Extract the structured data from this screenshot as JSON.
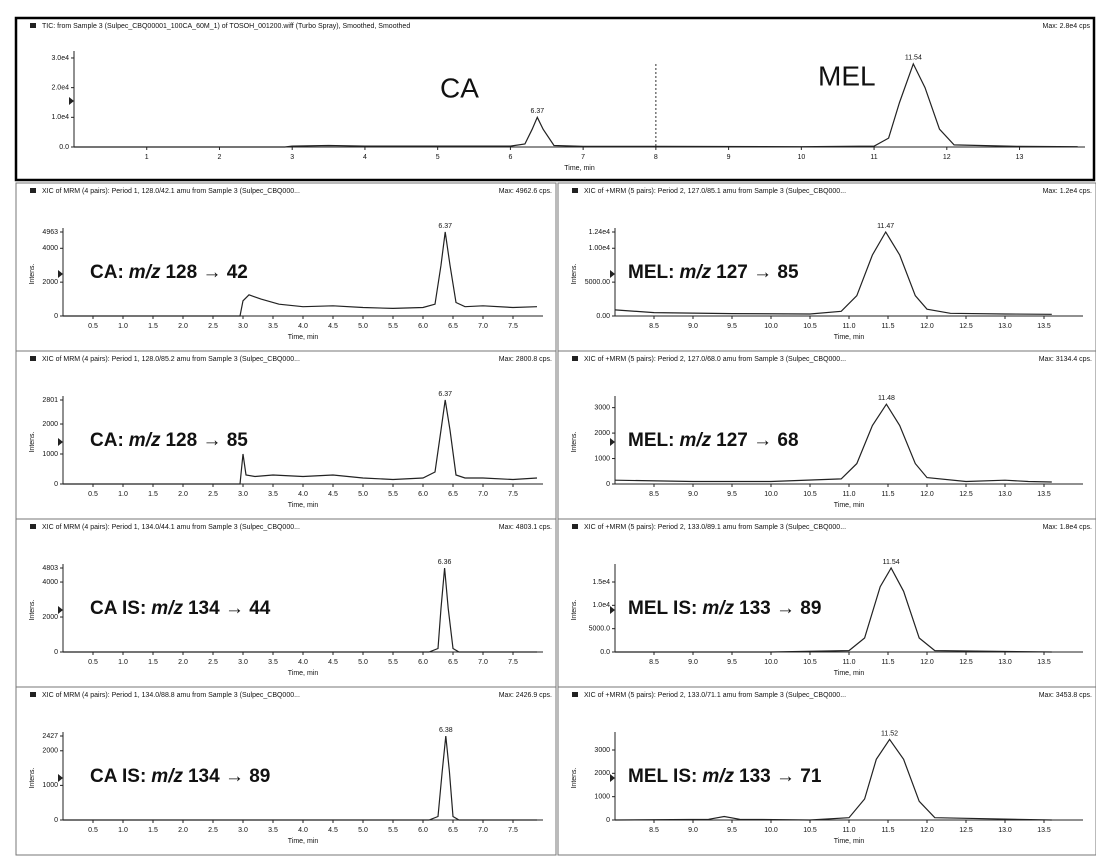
{
  "chart_data": [
    {
      "type": "line",
      "title": "TIC: from Sample 3 (Sulpec_CBQ00001_100CA_60M_1) of TOSOH_001200.wiff (Turbo Spray), Smoothed, Smoothed",
      "max_label": "Max: 2.8e4 cps",
      "xlabel": "Time, min",
      "annotations": [
        "CA",
        "MEL"
      ],
      "peaks": [
        6.37,
        11.54
      ],
      "period_boundary": 8,
      "color": "#222222",
      "x": [
        0,
        2.9,
        3.0,
        3.5,
        4.0,
        5.0,
        6.0,
        6.2,
        6.3,
        6.37,
        6.45,
        6.6,
        7.0,
        8.0,
        10.0,
        11.0,
        11.2,
        11.35,
        11.54,
        11.7,
        11.9,
        12.1,
        13.0,
        13.8
      ],
      "values": [
        0,
        0,
        300,
        500,
        300,
        300,
        300,
        1000,
        6000,
        10000,
        6000,
        500,
        200,
        200,
        100,
        300,
        3000,
        15000,
        28000,
        20000,
        6000,
        700,
        200,
        100
      ],
      "xlim": [
        0,
        13.9
      ],
      "xticks": [
        1,
        2,
        3,
        4,
        5,
        6,
        7,
        8,
        9,
        10,
        11,
        12,
        13
      ],
      "ylim": [
        0,
        31000
      ],
      "yticks": [
        {
          "value": 0,
          "label": "0.0"
        },
        {
          "value": 10000,
          "label": "1.0e4"
        },
        {
          "value": 20000,
          "label": "2.0e4"
        },
        {
          "value": 30000,
          "label": "3.0e4"
        }
      ]
    },
    {
      "type": "line",
      "title": "XIC of MRM (4 pairs): Period 1, 128.0/42.1 amu from Sample 3 (Sulpec_CBQ000...",
      "max_label": "Max: 4962.6 cps.",
      "xlabel": "Time, min",
      "ylabel": "Intens.",
      "annotation": [
        "CA:",
        "m/z",
        "128 → 42"
      ],
      "peaks": [
        6.37
      ],
      "color": "#222222",
      "x": [
        0,
        2.95,
        3.0,
        3.1,
        3.3,
        3.6,
        4.0,
        4.5,
        5.0,
        5.5,
        6.0,
        6.2,
        6.3,
        6.37,
        6.45,
        6.55,
        6.7,
        7.0,
        7.5,
        7.9
      ],
      "values": [
        0,
        0,
        900,
        1250,
        1000,
        700,
        550,
        600,
        500,
        450,
        500,
        700,
        3000,
        4963,
        3000,
        800,
        550,
        600,
        500,
        550
      ],
      "xlim": [
        0,
        8.0
      ],
      "xticks": [
        0.5,
        {
          "value": 1,
          "label": "1.0"
        },
        1.5,
        {
          "value": 2,
          "label": "2.0"
        },
        2.5,
        {
          "value": 3,
          "label": "3.0"
        },
        3.5,
        {
          "value": 4,
          "label": "4.0"
        },
        4.5,
        {
          "value": 5,
          "label": "5.0"
        },
        5.5,
        {
          "value": 6,
          "label": "6.0"
        },
        6.5,
        {
          "value": 7,
          "label": "7.0"
        },
        7.5
      ],
      "ylim": [
        0,
        4963
      ],
      "yticks": [
        0,
        2000,
        4000,
        4963
      ]
    },
    {
      "type": "line",
      "title": "XIC of MRM (4 pairs): Period 1, 128.0/85.2 amu from Sample 3 (Sulpec_CBQ000...",
      "max_label": "Max: 2800.8 cps.",
      "xlabel": "Time, min",
      "ylabel": "Intens.",
      "annotation": [
        "CA:",
        "m/z",
        "128 → 85"
      ],
      "peaks": [
        6.37
      ],
      "color": "#222222",
      "x": [
        0,
        2.95,
        3.0,
        3.05,
        3.2,
        3.5,
        4.0,
        4.5,
        5.0,
        5.5,
        6.0,
        6.2,
        6.3,
        6.37,
        6.45,
        6.55,
        6.7,
        7.0,
        7.5,
        7.9
      ],
      "values": [
        0,
        0,
        1000,
        300,
        250,
        300,
        250,
        300,
        200,
        150,
        200,
        400,
        1800,
        2801,
        1800,
        300,
        200,
        200,
        150,
        200
      ],
      "xlim": [
        0,
        8.0
      ],
      "xticks": [
        0.5,
        {
          "value": 1,
          "label": "1.0"
        },
        1.5,
        {
          "value": 2,
          "label": "2.0"
        },
        2.5,
        {
          "value": 3,
          "label": "3.0"
        },
        3.5,
        {
          "value": 4,
          "label": "4.0"
        },
        4.5,
        {
          "value": 5,
          "label": "5.0"
        },
        5.5,
        {
          "value": 6,
          "label": "6.0"
        },
        6.5,
        {
          "value": 7,
          "label": "7.0"
        },
        7.5
      ],
      "ylim": [
        0,
        2801
      ],
      "yticks": [
        0,
        1000,
        2000,
        2801
      ]
    },
    {
      "type": "line",
      "title": "XIC of MRM (4 pairs): Period 1, 134.0/44.1 amu from Sample 3 (Sulpec_CBQ000...",
      "max_label": "Max: 4803.1 cps.",
      "xlabel": "Time, min",
      "ylabel": "Intens.",
      "annotation": [
        "CA IS:",
        "m/z",
        "134 → 44"
      ],
      "peaks": [
        6.36
      ],
      "color": "#222222",
      "x": [
        0,
        6.1,
        6.25,
        6.3,
        6.36,
        6.42,
        6.5,
        6.6,
        7.9
      ],
      "values": [
        0,
        0,
        200,
        2500,
        4803,
        2500,
        200,
        0,
        0
      ],
      "xlim": [
        0,
        8.0
      ],
      "xticks": [
        0.5,
        {
          "value": 1,
          "label": "1.0"
        },
        1.5,
        {
          "value": 2,
          "label": "2.0"
        },
        2.5,
        {
          "value": 3,
          "label": "3.0"
        },
        3.5,
        {
          "value": 4,
          "label": "4.0"
        },
        4.5,
        {
          "value": 5,
          "label": "5.0"
        },
        5.5,
        {
          "value": 6,
          "label": "6.0"
        },
        6.5,
        {
          "value": 7,
          "label": "7.0"
        },
        7.5
      ],
      "ylim": [
        0,
        4803
      ],
      "yticks": [
        0,
        2000,
        4000,
        4803
      ]
    },
    {
      "type": "line",
      "title": "XIC of MRM (4 pairs): Period 1, 134.0/88.8 amu from Sample 3 (Sulpec_CBQ000...",
      "max_label": "Max: 2426.9 cps.",
      "xlabel": "Time, min",
      "ylabel": "Intens.",
      "annotation": [
        "CA IS:",
        "m/z",
        "134 → 89"
      ],
      "peaks": [
        6.38
      ],
      "color": "#222222",
      "x": [
        0,
        6.1,
        6.25,
        6.32,
        6.38,
        6.44,
        6.5,
        6.6,
        7.9
      ],
      "values": [
        0,
        0,
        100,
        1400,
        2427,
        1400,
        100,
        0,
        0
      ],
      "xlim": [
        0,
        8.0
      ],
      "xticks": [
        0.5,
        {
          "value": 1,
          "label": "1.0"
        },
        1.5,
        {
          "value": 2,
          "label": "2.0"
        },
        2.5,
        {
          "value": 3,
          "label": "3.0"
        },
        3.5,
        {
          "value": 4,
          "label": "4.0"
        },
        4.5,
        {
          "value": 5,
          "label": "5.0"
        },
        5.5,
        {
          "value": 6,
          "label": "6.0"
        },
        6.5,
        {
          "value": 7,
          "label": "7.0"
        },
        7.5
      ],
      "ylim": [
        0,
        2427
      ],
      "yticks": [
        0,
        1000,
        2000,
        2427
      ]
    },
    {
      "type": "line",
      "title": "XIC of +MRM (5 pairs): Period 2, 127.0/85.1 amu from Sample 3 (Sulpec_CBQ000...",
      "max_label": "Max: 1.2e4 cps.",
      "xlabel": "Time, min",
      "ylabel": "Intens.",
      "annotation": [
        "MEL:",
        "m/z",
        "127 → 85"
      ],
      "peaks": [
        11.47
      ],
      "color": "#222222",
      "x": [
        8.0,
        8.5,
        9.5,
        10.5,
        10.9,
        11.1,
        11.3,
        11.47,
        11.65,
        11.85,
        12.0,
        12.3,
        13.0,
        13.6
      ],
      "values": [
        900,
        500,
        350,
        300,
        700,
        3000,
        9000,
        12400,
        9000,
        3000,
        1000,
        400,
        300,
        250
      ],
      "xlim": [
        8.0,
        14.0
      ],
      "xticks": [
        8.5,
        {
          "value": 9,
          "label": "9.0"
        },
        9.5,
        {
          "value": 10,
          "label": "10.0"
        },
        10.5,
        {
          "value": 11,
          "label": "11.0"
        },
        11.5,
        {
          "value": 12,
          "label": "12.0"
        },
        12.5,
        {
          "value": 13,
          "label": "13.0"
        },
        13.5
      ],
      "ylim": [
        0,
        12400
      ],
      "yticks": [
        {
          "value": 0,
          "label": "0.00"
        },
        {
          "value": 5000,
          "label": "5000.00"
        },
        {
          "value": 10000,
          "label": "1.00e4"
        },
        {
          "value": 12400,
          "label": "1.24e4"
        }
      ]
    },
    {
      "type": "line",
      "title": "XIC of +MRM (5 pairs): Period 2, 127.0/68.0 amu from Sample 3 (Sulpec_CBQ000...",
      "max_label": "Max: 3134.4 cps.",
      "xlabel": "Time, min",
      "ylabel": "Intens.",
      "annotation": [
        "MEL:",
        "m/z",
        "127 → 68"
      ],
      "peaks": [
        11.48
      ],
      "color": "#222222",
      "x": [
        8.0,
        9.0,
        10.0,
        10.9,
        11.1,
        11.3,
        11.48,
        11.65,
        11.85,
        12.0,
        12.5,
        13.0,
        13.3,
        13.6
      ],
      "values": [
        150,
        100,
        100,
        200,
        800,
        2300,
        3134,
        2300,
        800,
        250,
        100,
        150,
        100,
        80
      ],
      "xlim": [
        8.0,
        14.0
      ],
      "xticks": [
        8.5,
        {
          "value": 9,
          "label": "9.0"
        },
        9.5,
        {
          "value": 10,
          "label": "10.0"
        },
        10.5,
        {
          "value": 11,
          "label": "11.0"
        },
        11.5,
        {
          "value": 12,
          "label": "12.0"
        },
        12.5,
        {
          "value": 13,
          "label": "13.0"
        },
        13.5
      ],
      "ylim": [
        0,
        3300
      ],
      "yticks": [
        0,
        1000,
        2000,
        3000
      ]
    },
    {
      "type": "line",
      "title": "XIC of +MRM (5 pairs): Period 2, 133.0/89.1 amu from Sample 3 (Sulpec_CBQ000...",
      "max_label": "Max: 1.8e4 cps.",
      "xlabel": "Time, min",
      "ylabel": "Intens.",
      "annotation": [
        "MEL IS:",
        "m/z",
        "133 → 89"
      ],
      "peaks": [
        11.54
      ],
      "color": "#222222",
      "x": [
        8.0,
        10.0,
        11.0,
        11.2,
        11.4,
        11.54,
        11.7,
        11.9,
        12.1,
        13.6
      ],
      "values": [
        0,
        0,
        300,
        3000,
        14000,
        18000,
        13000,
        3000,
        300,
        0
      ],
      "xlim": [
        8.0,
        14.0
      ],
      "xticks": [
        8.5,
        {
          "value": 9,
          "label": "9.0"
        },
        9.5,
        {
          "value": 10,
          "label": "10.0"
        },
        10.5,
        {
          "value": 11,
          "label": "11.0"
        },
        11.5,
        {
          "value": 12,
          "label": "12.0"
        },
        12.5,
        {
          "value": 13,
          "label": "13.0"
        },
        13.5
      ],
      "ylim": [
        0,
        18000
      ],
      "yticks": [
        {
          "value": 0,
          "label": "0.0"
        },
        {
          "value": 5000,
          "label": "5000.0"
        },
        {
          "value": 10000,
          "label": "1.0e4"
        },
        {
          "value": 15000,
          "label": "1.5e4"
        }
      ]
    },
    {
      "type": "line",
      "title": "XIC of +MRM (5 pairs): Period 2, 133.0/71.1 amu from Sample 3 (Sulpec_CBQ000...",
      "max_label": "Max: 3453.8 cps.",
      "xlabel": "Time, min",
      "ylabel": "Intens.",
      "annotation": [
        "MEL IS:",
        "m/z",
        "133 → 71"
      ],
      "peaks": [
        11.52
      ],
      "color": "#222222",
      "x": [
        8.0,
        9.2,
        9.4,
        9.6,
        10.5,
        11.0,
        11.2,
        11.35,
        11.52,
        11.7,
        11.9,
        12.1,
        13.6
      ],
      "values": [
        0,
        30,
        150,
        30,
        0,
        100,
        900,
        2600,
        3454,
        2600,
        800,
        100,
        0
      ],
      "xlim": [
        8.0,
        14.0
      ],
      "xticks": [
        8.5,
        {
          "value": 9,
          "label": "9.0"
        },
        9.5,
        {
          "value": 10,
          "label": "10.0"
        },
        10.5,
        {
          "value": 11,
          "label": "11.0"
        },
        11.5,
        {
          "value": 12,
          "label": "12.0"
        },
        12.5,
        {
          "value": 13,
          "label": "13.0"
        },
        13.5
      ],
      "ylim": [
        0,
        3600
      ],
      "yticks": [
        0,
        1000,
        2000,
        3000
      ]
    }
  ]
}
